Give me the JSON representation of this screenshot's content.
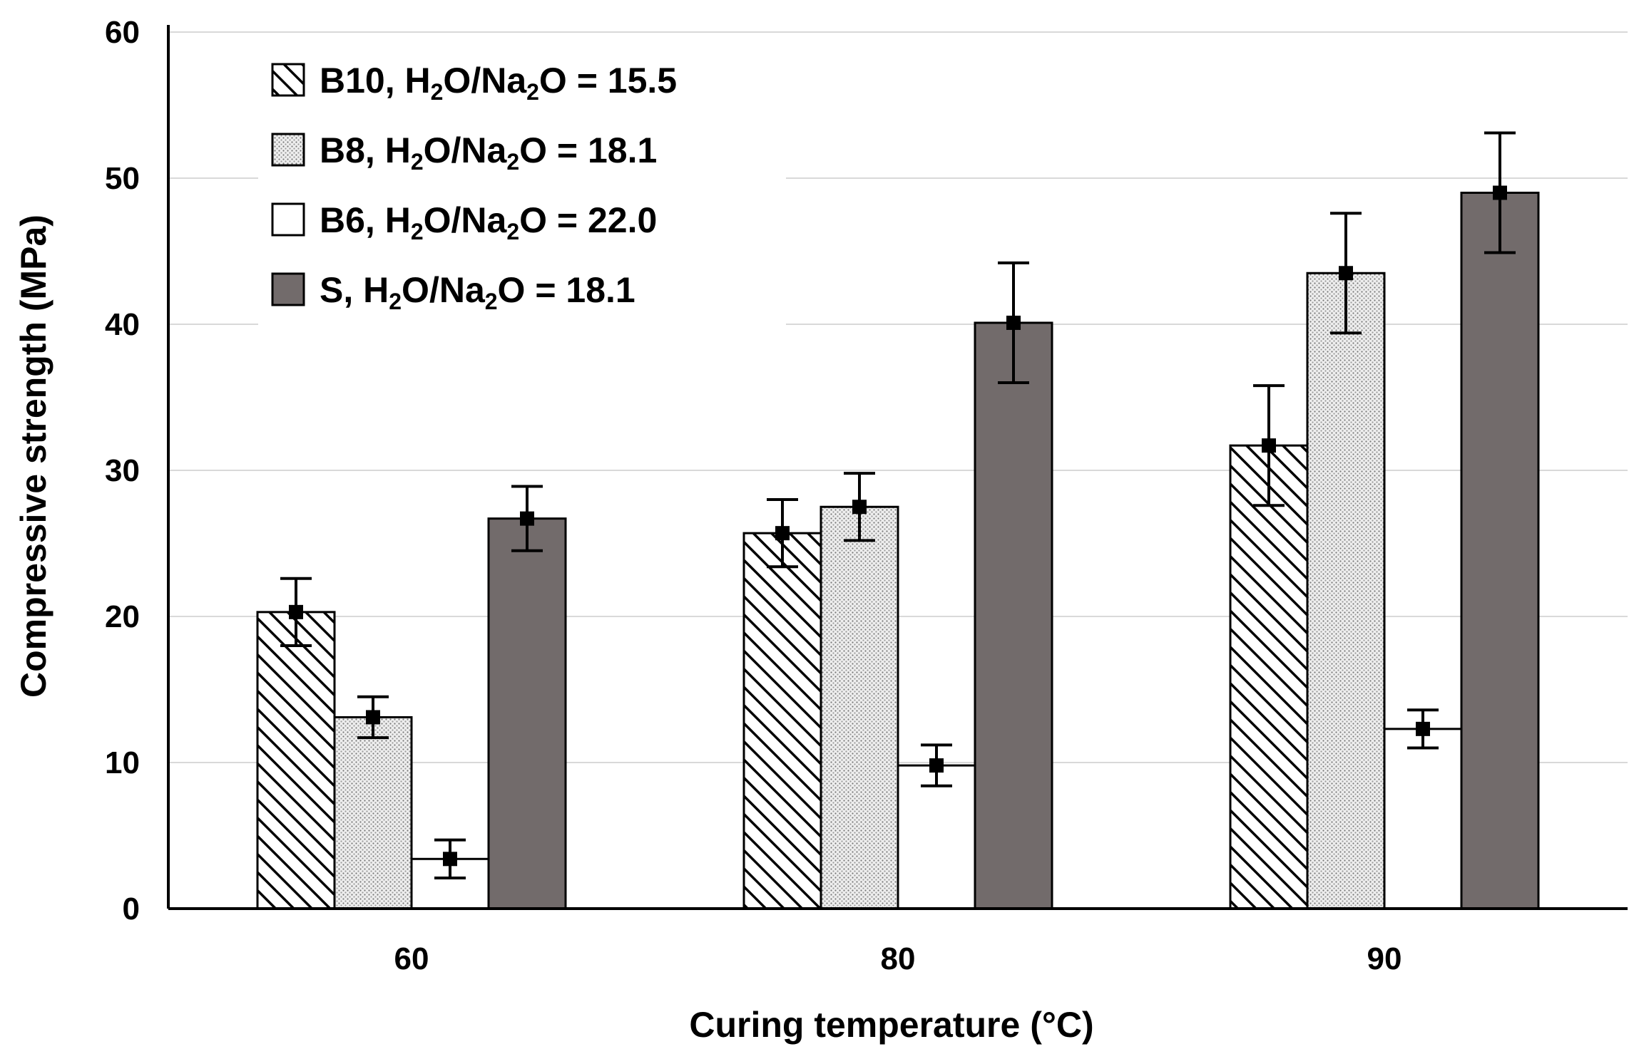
{
  "chart_data": {
    "type": "bar",
    "xlabel": "Curing temperature (°C)",
    "ylabel": "Compressive strength (MPa)",
    "ylim": [
      0,
      60
    ],
    "yticks": [
      0,
      10,
      20,
      30,
      40,
      50,
      60
    ],
    "categories": [
      "60",
      "80",
      "90"
    ],
    "grid": true,
    "legend_position": "top-left",
    "series": [
      {
        "name": "B10, H2O/Na2O = 15.5",
        "legend": {
          "prefix": "B10, H",
          "sub1": "2",
          "mid": "O/Na",
          "sub2": "2",
          "suffix": "O = 15.5"
        },
        "pattern": "hatch",
        "color": "#ffffff",
        "values": [
          20.3,
          25.7,
          31.7
        ],
        "errors": [
          2.3,
          2.3,
          4.1
        ]
      },
      {
        "name": "B8, H2O/Na2O = 18.1",
        "legend": {
          "prefix": "B8, H",
          "sub1": "2",
          "mid": "O/Na",
          "sub2": "2",
          "suffix": "O = 18.1"
        },
        "pattern": "dots",
        "color": "#e6e6e6",
        "values": [
          13.1,
          27.5,
          43.5
        ],
        "errors": [
          1.4,
          2.3,
          4.1
        ]
      },
      {
        "name": "B6, H2O/Na2O = 22.0",
        "legend": {
          "prefix": "B6, H",
          "sub1": "2",
          "mid": "O/Na",
          "sub2": "2",
          "suffix": "O = 22.0"
        },
        "pattern": "solid",
        "color": "#ffffff",
        "values": [
          3.4,
          9.8,
          12.3
        ],
        "errors": [
          1.3,
          1.4,
          1.3
        ]
      },
      {
        "name": "S, H2O/Na2O = 18.1",
        "legend": {
          "prefix": "S, H",
          "sub1": "2",
          "mid": "O/Na",
          "sub2": "2",
          "suffix": "O = 18.1"
        },
        "pattern": "solid",
        "color": "#726b6b",
        "values": [
          26.7,
          40.1,
          49.0
        ],
        "errors": [
          2.2,
          4.1,
          4.1
        ]
      }
    ]
  }
}
